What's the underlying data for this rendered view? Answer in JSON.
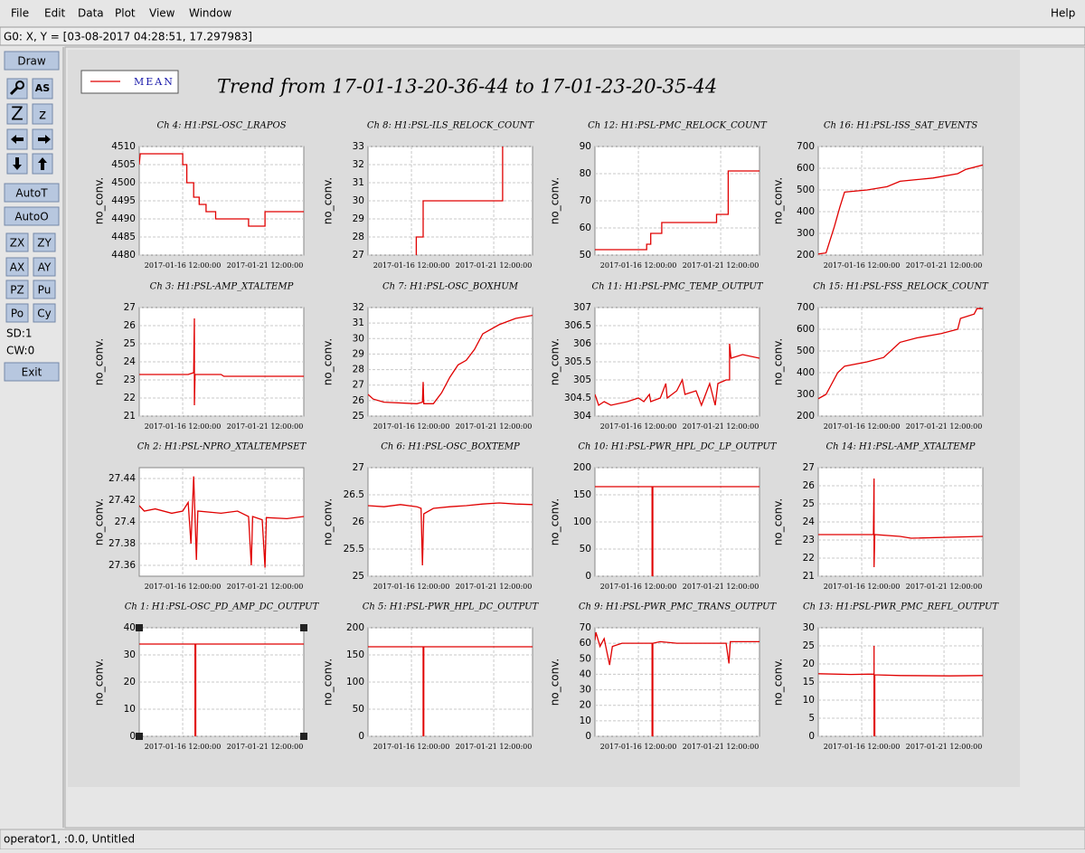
{
  "menu": [
    "File",
    "Edit",
    "Data",
    "Plot",
    "View",
    "Window"
  ],
  "help": "Help",
  "cursor_readout": "G0: X, Y = [03-08-2017 04:28:51, 17.297983]",
  "toolbar": {
    "draw": "Draw",
    "autoscale_icon": "AS",
    "zoom_icons": [
      "Z",
      "z"
    ],
    "buttons": [
      "AutoT",
      "AutoO"
    ],
    "pairs": [
      [
        "ZX",
        "ZY"
      ],
      [
        "AX",
        "AY"
      ],
      [
        "PZ",
        "Pu"
      ],
      [
        "Po",
        "Cy"
      ]
    ],
    "counters": [
      "SD:1",
      "CW:0"
    ],
    "exit": "Exit"
  },
  "legend": {
    "label": "MEAN",
    "color": "#e00000"
  },
  "trend_title": "Trend from 17-01-13-20-36-44 to 17-01-23-20-35-44",
  "status": "operator1, :0.0, Untitled",
  "chart_data": [
    {
      "type": "line",
      "title": "Ch 4: H1:PSL-OSC_LRAPOS",
      "ylabel": "no_conv.",
      "color": "#e00000",
      "grid": true,
      "xlim": [
        "2017-01-13 20:36:44",
        "2017-01-23 20:35:44"
      ],
      "xticks": [
        "2017-01-16 12:00:00",
        "2017-01-21 12:00:00"
      ],
      "ylim": [
        4480,
        4510
      ],
      "yticks": [
        4480,
        4485,
        4490,
        4495,
        4500,
        4505,
        4510
      ],
      "x": [
        "2017-01-13 20:36:44",
        "2017-01-13 22:00:00",
        "2017-01-16 12:00:00",
        "2017-01-16 12:00:00",
        "2017-01-16 18:00:00",
        "2017-01-16 18:00:00",
        "2017-01-17 04:00:00",
        "2017-01-17 04:00:00",
        "2017-01-17 12:00:00",
        "2017-01-17 12:00:00",
        "2017-01-17 22:00:00",
        "2017-01-17 22:00:00",
        "2017-01-18 12:00:00",
        "2017-01-18 12:00:00",
        "2017-01-20 12:00:00",
        "2017-01-20 12:00:00",
        "2017-01-21 12:00:00",
        "2017-01-21 12:00:00",
        "2017-01-23 20:35:44"
      ],
      "values": [
        4505,
        4508,
        4508,
        4505,
        4505,
        4500,
        4500,
        4496,
        4496,
        4494,
        4494,
        4492,
        4492,
        4490,
        4490,
        4488,
        4488,
        4492,
        4492
      ]
    },
    {
      "type": "line",
      "title": "Ch 8: H1:PSL-ILS_RELOCK_COUNT",
      "ylabel": "no_conv.",
      "color": "#e00000",
      "grid": true,
      "xlim": [
        "2017-01-13 20:36:44",
        "2017-01-23 20:35:44"
      ],
      "xticks": [
        "2017-01-16 12:00:00",
        "2017-01-21 12:00:00"
      ],
      "ylim": [
        27,
        33
      ],
      "yticks": [
        27,
        28,
        29,
        30,
        31,
        32,
        33
      ],
      "x": [
        "2017-01-16 19:00:00",
        "2017-01-16 19:00:00",
        "2017-01-17 05:00:00",
        "2017-01-17 05:00:00",
        "2017-01-22 01:00:00",
        "2017-01-22 01:00:00"
      ],
      "values": [
        26,
        28,
        28,
        30,
        30,
        33
      ]
    },
    {
      "type": "line",
      "title": "Ch 12: H1:PSL-PMC_RELOCK_COUNT",
      "ylabel": "no_conv.",
      "color": "#e00000",
      "grid": true,
      "xlim": [
        "2017-01-13 20:36:44",
        "2017-01-23 20:35:44"
      ],
      "xticks": [
        "2017-01-16 12:00:00",
        "2017-01-21 12:00:00"
      ],
      "ylim": [
        50,
        90
      ],
      "yticks": [
        50,
        60,
        70,
        80,
        90
      ],
      "x": [
        "2017-01-13 20:36:44",
        "2017-01-17 00:00:00",
        "2017-01-17 00:00:00",
        "2017-01-17 06:00:00",
        "2017-01-17 06:00:00",
        "2017-01-17 22:00:00",
        "2017-01-17 22:00:00",
        "2017-01-21 06:00:00",
        "2017-01-21 06:00:00",
        "2017-01-21 23:00:00",
        "2017-01-21 23:00:00",
        "2017-01-23 20:35:44"
      ],
      "values": [
        52,
        52,
        54,
        54,
        58,
        58,
        62,
        62,
        65,
        65,
        81,
        81
      ]
    },
    {
      "type": "line",
      "title": "Ch 16: H1:PSL-ISS_SAT_EVENTS",
      "ylabel": "no_conv.",
      "color": "#e00000",
      "grid": true,
      "xlim": [
        "2017-01-13 20:36:44",
        "2017-01-23 20:35:44"
      ],
      "xticks": [
        "2017-01-16 12:00:00",
        "2017-01-21 12:00:00"
      ],
      "ylim": [
        200,
        700
      ],
      "yticks": [
        200,
        300,
        400,
        500,
        600,
        700
      ],
      "x": [
        "2017-01-13 20:36:44",
        "2017-01-14 08:00:00",
        "2017-01-14 20:00:00",
        "2017-01-15 04:00:00",
        "2017-01-15 11:00:00",
        "2017-01-16 20:00:00",
        "2017-01-18 01:00:00",
        "2017-01-18 20:00:00",
        "2017-01-20 20:00:00",
        "2017-01-22 08:00:00",
        "2017-01-22 20:00:00",
        "2017-01-23 20:35:44"
      ],
      "values": [
        205,
        210,
        330,
        420,
        490,
        500,
        515,
        540,
        555,
        575,
        595,
        615
      ]
    },
    {
      "type": "line",
      "title": "Ch 3: H1:PSL-AMP_XTALTEMP",
      "ylabel": "no_conv.",
      "color": "#e00000",
      "grid": true,
      "xlim": [
        "2017-01-13 20:36:44",
        "2017-01-23 20:35:44"
      ],
      "xticks": [
        "2017-01-16 12:00:00",
        "2017-01-21 12:00:00"
      ],
      "ylim": [
        21,
        27
      ],
      "yticks": [
        21,
        22,
        23,
        24,
        25,
        26,
        27
      ],
      "x": [
        "2017-01-13 20:36:44",
        "2017-01-16 20:00:00",
        "2017-01-17 04:00:00",
        "2017-01-17 05:00:00",
        "2017-01-17 05:00:00",
        "2017-01-17 06:00:00",
        "2017-01-17 08:00:00",
        "2017-01-18 20:00:00",
        "2017-01-19 00:00:00",
        "2017-01-23 20:35:44"
      ],
      "values": [
        23.3,
        23.3,
        23.4,
        26.4,
        21.6,
        23.3,
        23.3,
        23.3,
        23.2,
        23.2
      ]
    },
    {
      "type": "line",
      "title": "Ch 7: H1:PSL-OSC_BOXHUM",
      "ylabel": "no_conv.",
      "color": "#e00000",
      "grid": true,
      "xlim": [
        "2017-01-13 20:36:44",
        "2017-01-23 20:35:44"
      ],
      "xticks": [
        "2017-01-16 12:00:00",
        "2017-01-21 12:00:00"
      ],
      "ylim": [
        25,
        32
      ],
      "yticks": [
        25,
        26,
        27,
        28,
        29,
        30,
        31,
        32
      ],
      "x": [
        "2017-01-13 20:36:44",
        "2017-01-14 04:00:00",
        "2017-01-14 20:00:00",
        "2017-01-16 20:00:00",
        "2017-01-17 04:00:00",
        "2017-01-17 05:00:00",
        "2017-01-17 06:00:00",
        "2017-01-17 20:00:00",
        "2017-01-18 08:00:00",
        "2017-01-18 20:00:00",
        "2017-01-19 08:00:00",
        "2017-01-19 20:00:00",
        "2017-01-20 08:00:00",
        "2017-01-20 20:00:00",
        "2017-01-21 20:00:00",
        "2017-01-22 20:00:00",
        "2017-01-23 20:35:44"
      ],
      "values": [
        26.4,
        26.1,
        25.9,
        25.8,
        25.9,
        27.2,
        25.8,
        25.8,
        26.5,
        27.5,
        28.3,
        28.6,
        29.3,
        30.3,
        30.9,
        31.3,
        31.5
      ]
    },
    {
      "type": "line",
      "title": "Ch 11: H1:PSL-PMC_TEMP_OUTPUT",
      "ylabel": "no_conv.",
      "color": "#e00000",
      "grid": true,
      "xlim": [
        "2017-01-13 20:36:44",
        "2017-01-23 20:35:44"
      ],
      "xticks": [
        "2017-01-16 12:00:00",
        "2017-01-21 12:00:00"
      ],
      "ylim": [
        304,
        307
      ],
      "yticks": [
        304,
        304.5,
        305,
        305.5,
        306,
        306.5,
        307
      ],
      "x": [
        "2017-01-13 20:36:44",
        "2017-01-14 02:00:00",
        "2017-01-14 10:00:00",
        "2017-01-14 20:00:00",
        "2017-01-15 20:00:00",
        "2017-01-16 12:00:00",
        "2017-01-16 20:00:00",
        "2017-01-17 04:00:00",
        "2017-01-17 06:00:00",
        "2017-01-17 20:00:00",
        "2017-01-18 04:00:00",
        "2017-01-18 06:00:00",
        "2017-01-18 20:00:00",
        "2017-01-19 04:00:00",
        "2017-01-19 08:00:00",
        "2017-01-20 00:00:00",
        "2017-01-20 08:00:00",
        "2017-01-20 20:00:00",
        "2017-01-21 04:00:00",
        "2017-01-21 08:00:00",
        "2017-01-21 20:00:00",
        "2017-01-22 01:00:00",
        "2017-01-22 01:00:00",
        "2017-01-22 03:00:00",
        "2017-01-22 20:00:00",
        "2017-01-23 20:35:44"
      ],
      "values": [
        304.6,
        304.3,
        304.4,
        304.3,
        304.4,
        304.5,
        304.4,
        304.6,
        304.4,
        304.5,
        304.9,
        304.5,
        304.7,
        305.0,
        304.6,
        304.7,
        304.3,
        304.9,
        304.3,
        304.9,
        305.0,
        305.0,
        306.0,
        305.6,
        305.7,
        305.6
      ]
    },
    {
      "type": "line",
      "title": "Ch 15: H1:PSL-FSS_RELOCK_COUNT",
      "ylabel": "no_conv.",
      "color": "#e00000",
      "grid": true,
      "xlim": [
        "2017-01-13 20:36:44",
        "2017-01-23 20:35:44"
      ],
      "xticks": [
        "2017-01-16 12:00:00",
        "2017-01-21 12:00:00"
      ],
      "ylim": [
        200,
        700
      ],
      "yticks": [
        200,
        300,
        400,
        500,
        600,
        700
      ],
      "x": [
        "2017-01-13 20:36:44",
        "2017-01-14 08:00:00",
        "2017-01-15 01:00:00",
        "2017-01-15 11:00:00",
        "2017-01-16 20:00:00",
        "2017-01-17 20:00:00",
        "2017-01-18 20:00:00",
        "2017-01-19 20:00:00",
        "2017-01-21 08:00:00",
        "2017-01-22 08:00:00",
        "2017-01-22 12:00:00",
        "2017-01-23 08:00:00",
        "2017-01-23 12:00:00",
        "2017-01-23 20:35:44"
      ],
      "values": [
        280,
        300,
        400,
        430,
        450,
        470,
        540,
        560,
        580,
        600,
        650,
        670,
        695,
        695
      ]
    },
    {
      "type": "line",
      "title": "Ch 2: H1:PSL-NPRO_XTALTEMPSET",
      "ylabel": "no_conv.",
      "color": "#e00000",
      "grid": true,
      "xlim": [
        "2017-01-13 20:36:44",
        "2017-01-23 20:35:44"
      ],
      "xticks": [
        "2017-01-16 12:00:00",
        "2017-01-21 12:00:00"
      ],
      "ylim": [
        27.35,
        27.45
      ],
      "yticks": [
        27.36,
        27.38,
        27.4,
        27.42,
        27.44
      ],
      "x": [
        "2017-01-13 20:36:44",
        "2017-01-14 04:00:00",
        "2017-01-14 20:00:00",
        "2017-01-15 20:00:00",
        "2017-01-16 12:00:00",
        "2017-01-16 20:00:00",
        "2017-01-17 00:00:00",
        "2017-01-17 04:00:00",
        "2017-01-17 06:00:00",
        "2017-01-17 08:00:00",
        "2017-01-17 10:00:00",
        "2017-01-18 20:00:00",
        "2017-01-19 20:00:00",
        "2017-01-20 12:00:00",
        "2017-01-20 16:00:00",
        "2017-01-20 18:00:00",
        "2017-01-21 08:00:00",
        "2017-01-21 12:00:00",
        "2017-01-21 14:00:00",
        "2017-01-22 20:00:00",
        "2017-01-23 20:35:44"
      ],
      "values": [
        27.415,
        27.41,
        27.412,
        27.408,
        27.41,
        27.418,
        27.38,
        27.442,
        27.405,
        27.365,
        27.41,
        27.408,
        27.41,
        27.405,
        27.36,
        27.405,
        27.402,
        27.358,
        27.404,
        27.403,
        27.405
      ]
    },
    {
      "type": "line",
      "title": "Ch 6: H1:PSL-OSC_BOXTEMP",
      "ylabel": "no_conv.",
      "color": "#e00000",
      "grid": true,
      "xlim": [
        "2017-01-13 20:36:44",
        "2017-01-23 20:35:44"
      ],
      "xticks": [
        "2017-01-16 12:00:00",
        "2017-01-21 12:00:00"
      ],
      "ylim": [
        25,
        27
      ],
      "yticks": [
        25,
        25.5,
        26,
        26.5,
        27
      ],
      "x": [
        "2017-01-13 20:36:44",
        "2017-01-14 20:00:00",
        "2017-01-15 20:00:00",
        "2017-01-16 20:00:00",
        "2017-01-17 02:00:00",
        "2017-01-17 04:00:00",
        "2017-01-17 06:00:00",
        "2017-01-17 20:00:00",
        "2017-01-18 20:00:00",
        "2017-01-19 20:00:00",
        "2017-01-20 20:00:00",
        "2017-01-21 20:00:00",
        "2017-01-22 20:00:00",
        "2017-01-23 20:35:44"
      ],
      "values": [
        26.3,
        26.28,
        26.32,
        26.28,
        26.25,
        25.2,
        26.15,
        26.25,
        26.28,
        26.3,
        26.33,
        26.35,
        26.33,
        26.32
      ]
    },
    {
      "type": "line",
      "title": "Ch 10: H1:PSL-PWR_HPL_DC_LP_OUTPUT",
      "ylabel": "no_conv.",
      "color": "#e00000",
      "grid": true,
      "xlim": [
        "2017-01-13 20:36:44",
        "2017-01-23 20:35:44"
      ],
      "xticks": [
        "2017-01-16 12:00:00",
        "2017-01-21 12:00:00"
      ],
      "ylim": [
        0,
        200
      ],
      "yticks": [
        0,
        50,
        100,
        150,
        200
      ],
      "x": [
        "2017-01-13 20:36:44",
        "2017-01-17 08:00:00",
        "2017-01-17 08:00:00",
        "2017-01-17 09:00:00",
        "2017-01-17 09:00:00",
        "2017-01-23 20:35:44"
      ],
      "values": [
        165,
        165,
        0,
        0,
        165,
        165
      ]
    },
    {
      "type": "line",
      "title": "Ch 14: H1:PSL-AMP_XTALTEMP",
      "ylabel": "no_conv.",
      "color": "#e00000",
      "grid": true,
      "xlim": [
        "2017-01-13 20:36:44",
        "2017-01-23 20:35:44"
      ],
      "xticks": [
        "2017-01-16 12:00:00",
        "2017-01-21 12:00:00"
      ],
      "ylim": [
        21,
        27
      ],
      "yticks": [
        21,
        22,
        23,
        24,
        25,
        26,
        27
      ],
      "x": [
        "2017-01-13 20:36:44",
        "2017-01-17 05:00:00",
        "2017-01-17 06:00:00",
        "2017-01-17 06:00:00",
        "2017-01-17 07:00:00",
        "2017-01-18 20:00:00",
        "2017-01-19 12:00:00",
        "2017-01-23 20:35:44"
      ],
      "values": [
        23.3,
        23.3,
        26.4,
        21.5,
        23.3,
        23.2,
        23.1,
        23.2
      ]
    },
    {
      "type": "line",
      "title": "Ch 1: H1:PSL-OSC_PD_AMP_DC_OUTPUT",
      "ylabel": "no_conv.",
      "color": "#e00000",
      "grid": true,
      "selected": true,
      "xlim": [
        "2017-01-13 20:36:44",
        "2017-01-23 20:35:44"
      ],
      "xticks": [
        "2017-01-16 12:00:00",
        "2017-01-21 12:00:00"
      ],
      "ylim": [
        0,
        40
      ],
      "yticks": [
        0,
        10,
        20,
        30,
        40
      ],
      "x": [
        "2017-01-13 20:36:44",
        "2017-01-17 06:00:00",
        "2017-01-17 06:00:00",
        "2017-01-17 07:00:00",
        "2017-01-17 07:00:00",
        "2017-01-23 20:35:44"
      ],
      "values": [
        34,
        34,
        0,
        0,
        34,
        34
      ]
    },
    {
      "type": "line",
      "title": "Ch 5: H1:PSL-PWR_HPL_DC_OUTPUT",
      "ylabel": "no_conv.",
      "color": "#e00000",
      "grid": true,
      "xlim": [
        "2017-01-13 20:36:44",
        "2017-01-23 20:35:44"
      ],
      "xticks": [
        "2017-01-16 12:00:00",
        "2017-01-21 12:00:00"
      ],
      "ylim": [
        0,
        200
      ],
      "yticks": [
        0,
        50,
        100,
        150,
        200
      ],
      "x": [
        "2017-01-13 20:36:44",
        "2017-01-17 05:00:00",
        "2017-01-17 05:00:00",
        "2017-01-17 06:00:00",
        "2017-01-17 06:00:00",
        "2017-01-23 20:35:44"
      ],
      "values": [
        165,
        165,
        0,
        0,
        165,
        165
      ]
    },
    {
      "type": "line",
      "title": "Ch 9: H1:PSL-PWR_PMC_TRANS_OUTPUT",
      "ylabel": "no_conv.",
      "color": "#e00000",
      "grid": true,
      "xlim": [
        "2017-01-13 20:36:44",
        "2017-01-23 20:35:44"
      ],
      "xticks": [
        "2017-01-16 12:00:00",
        "2017-01-21 12:00:00"
      ],
      "ylim": [
        0,
        70
      ],
      "yticks": [
        0,
        10,
        20,
        30,
        40,
        50,
        60,
        70
      ],
      "x": [
        "2017-01-13 20:36:44",
        "2017-01-13 22:00:00",
        "2017-01-14 04:00:00",
        "2017-01-14 10:00:00",
        "2017-01-14 18:00:00",
        "2017-01-14 22:00:00",
        "2017-01-15 12:00:00",
        "2017-01-16 12:00:00",
        "2017-01-17 08:00:00",
        "2017-01-17 08:00:00",
        "2017-01-17 09:00:00",
        "2017-01-17 09:00:00",
        "2017-01-17 20:00:00",
        "2017-01-18 20:00:00",
        "2017-01-19 20:00:00",
        "2017-01-21 20:00:00",
        "2017-01-22 00:00:00",
        "2017-01-22 02:00:00",
        "2017-01-22 20:00:00",
        "2017-01-23 20:35:44"
      ],
      "values": [
        62,
        67,
        58,
        63,
        46,
        58,
        60,
        60,
        60,
        0,
        0,
        60,
        61,
        60,
        60,
        60,
        47,
        61,
        61,
        61
      ]
    },
    {
      "type": "line",
      "title": "Ch 13: H1:PSL-PWR_PMC_REFL_OUTPUT",
      "ylabel": "no_conv.",
      "color": "#e00000",
      "grid": true,
      "xlim": [
        "2017-01-13 20:36:44",
        "2017-01-23 20:35:44"
      ],
      "xticks": [
        "2017-01-16 12:00:00",
        "2017-01-21 12:00:00"
      ],
      "ylim": [
        0,
        30
      ],
      "yticks": [
        0,
        5,
        10,
        15,
        20,
        25,
        30
      ],
      "x": [
        "2017-01-13 20:36:44",
        "2017-01-15 20:00:00",
        "2017-01-17 06:00:00",
        "2017-01-17 06:00:00",
        "2017-01-17 06:00:00",
        "2017-01-17 07:00:00",
        "2017-01-17 07:00:00",
        "2017-01-18 20:00:00",
        "2017-01-21 20:00:00",
        "2017-01-23 20:35:44"
      ],
      "values": [
        17.3,
        17.1,
        17.2,
        25,
        0,
        0,
        17,
        16.8,
        16.7,
        16.8
      ]
    }
  ]
}
